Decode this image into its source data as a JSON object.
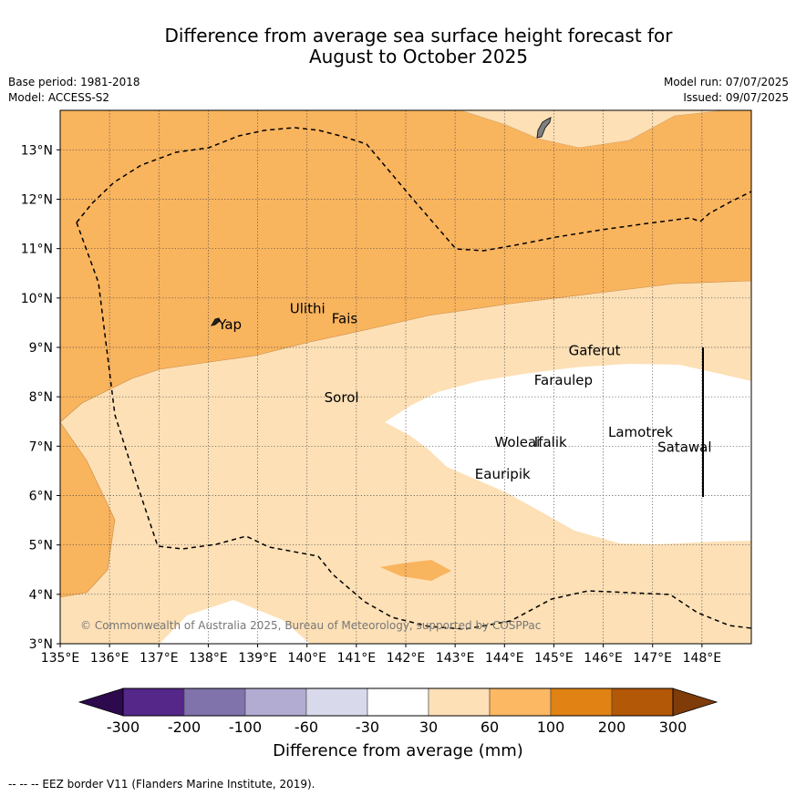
{
  "title": {
    "line1": "Difference from average sea surface height forecast for",
    "line2": "August to October 2025"
  },
  "meta": {
    "base_period": "Base period: 1981-2018",
    "model": "Model: ACCESS-S2",
    "model_run": "Model run: 07/07/2025",
    "issued": "Issued: 09/07/2025"
  },
  "map": {
    "x_ticks": [
      "135°E",
      "136°E",
      "137°E",
      "138°E",
      "139°E",
      "140°E",
      "141°E",
      "142°E",
      "143°E",
      "144°E",
      "145°E",
      "146°E",
      "147°E",
      "148°E"
    ],
    "y_ticks": [
      "3°N",
      "4°N",
      "5°N",
      "6°N",
      "7°N",
      "8°N",
      "9°N",
      "10°N",
      "11°N",
      "12°N",
      "13°N"
    ],
    "lon_range": [
      135,
      149
    ],
    "lat_range": [
      3,
      13.8
    ],
    "places": [
      {
        "name": "Yap",
        "lon": 138.2,
        "lat": 9.48
      },
      {
        "name": "Ulithi",
        "lon": 139.65,
        "lat": 9.8
      },
      {
        "name": "Fais",
        "lon": 140.5,
        "lat": 9.6
      },
      {
        "name": "Sorol",
        "lon": 140.35,
        "lat": 8.0
      },
      {
        "name": "Gaferut",
        "lon": 145.3,
        "lat": 8.95
      },
      {
        "name": "Faraulep",
        "lon": 144.6,
        "lat": 8.35
      },
      {
        "name": "Lamotrek",
        "lon": 146.1,
        "lat": 7.3
      },
      {
        "name": "Woleai",
        "lon": 143.8,
        "lat": 7.1
      },
      {
        "name": "Ifalik",
        "lon": 144.6,
        "lat": 7.1
      },
      {
        "name": "Satawal",
        "lon": 147.1,
        "lat": 7.0
      },
      {
        "name": "Eauripik",
        "lon": 143.4,
        "lat": 6.45
      }
    ],
    "copyright": "© Commonwealth of Australia 2025, Bureau of Meteorology, supported by COSPPac",
    "colors": {
      "c30_60": "#fde0b6",
      "c60_100": "#f9b45e",
      "land": "#808080",
      "grid": "#555555"
    }
  },
  "colorbar": {
    "ticks": [
      "-300",
      "-200",
      "-100",
      "-60",
      "-30",
      "30",
      "60",
      "100",
      "200",
      "300"
    ],
    "colors": [
      "#2d0a4e",
      "#542788",
      "#8073ac",
      "#b2abd2",
      "#d8daeb",
      "#ffffff",
      "#fee0b6",
      "#fdb863",
      "#e08214",
      "#b35806",
      "#7f3b08"
    ],
    "label": "Difference from average (mm)"
  },
  "footnote": "--  --  -- EEZ border V11 (Flanders Marine Institute, 2019)."
}
